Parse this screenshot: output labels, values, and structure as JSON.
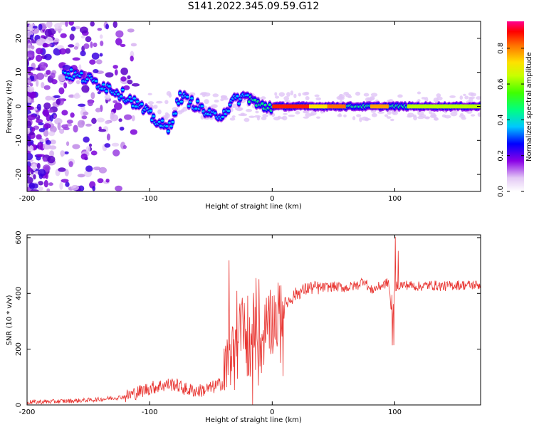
{
  "figure": {
    "title": "S141.2022.345.09.59.G12"
  },
  "chart_data": [
    {
      "type": "heatmap",
      "xlabel": "Height of straight line (km)",
      "ylabel": "Frequency (Hz)",
      "xlim": [
        -200,
        170
      ],
      "ylim": [
        -25,
        25
      ],
      "xticks": [
        -200,
        -100,
        0,
        100
      ],
      "yticks": [
        -20,
        -10,
        0,
        10,
        20
      ],
      "colorbar": {
        "label": "Normalized spectral amplitude",
        "range": [
          0,
          0.95
        ],
        "ticks": [
          0.0,
          0.2,
          0.4,
          0.6,
          0.8
        ]
      },
      "ridge": [
        {
          "x": -170,
          "y": 10
        },
        {
          "x": -150,
          "y": 8
        },
        {
          "x": -130,
          "y": 5
        },
        {
          "x": -115,
          "y": 2
        },
        {
          "x": -105,
          "y": -1
        },
        {
          "x": -95,
          "y": -4
        },
        {
          "x": -85,
          "y": -7
        },
        {
          "x": -75,
          "y": 3
        },
        {
          "x": -60,
          "y": 0
        },
        {
          "x": -50,
          "y": -3
        },
        {
          "x": -40,
          "y": -2
        },
        {
          "x": -30,
          "y": 2
        },
        {
          "x": -20,
          "y": 3
        },
        {
          "x": -10,
          "y": 0
        },
        {
          "x": 0,
          "y": 0
        },
        {
          "x": 50,
          "y": 0
        },
        {
          "x": 100,
          "y": 0
        },
        {
          "x": 170,
          "y": 0
        }
      ]
    },
    {
      "type": "line",
      "xlabel": "Height of straight line (km)",
      "ylabel": "SNR (10 * v/v)",
      "xlim": [
        -200,
        170
      ],
      "ylim": [
        0,
        610
      ],
      "xticks": [
        -200,
        -100,
        0,
        100
      ],
      "yticks": [
        0,
        200,
        400,
        600
      ],
      "series": [
        {
          "color": "#e8332f",
          "x": [
            -200,
            -180,
            -160,
            -140,
            -120,
            -110,
            -100,
            -90,
            -80,
            -70,
            -60,
            -50,
            -40,
            -35,
            -30,
            -25,
            -20,
            -15,
            -10,
            -5,
            0,
            10,
            20,
            30,
            40,
            50,
            60,
            70,
            75,
            80,
            90,
            95,
            98,
            100,
            102,
            110,
            120,
            130,
            140,
            150,
            160,
            170
          ],
          "y": [
            10,
            12,
            15,
            20,
            30,
            45,
            60,
            70,
            75,
            55,
            50,
            60,
            80,
            200,
            150,
            300,
            200,
            250,
            200,
            280,
            300,
            360,
            400,
            420,
            420,
            425,
            420,
            430,
            450,
            410,
            430,
            440,
            300,
            420,
            430,
            430,
            425,
            430,
            425,
            430,
            430,
            430
          ]
        }
      ]
    }
  ]
}
